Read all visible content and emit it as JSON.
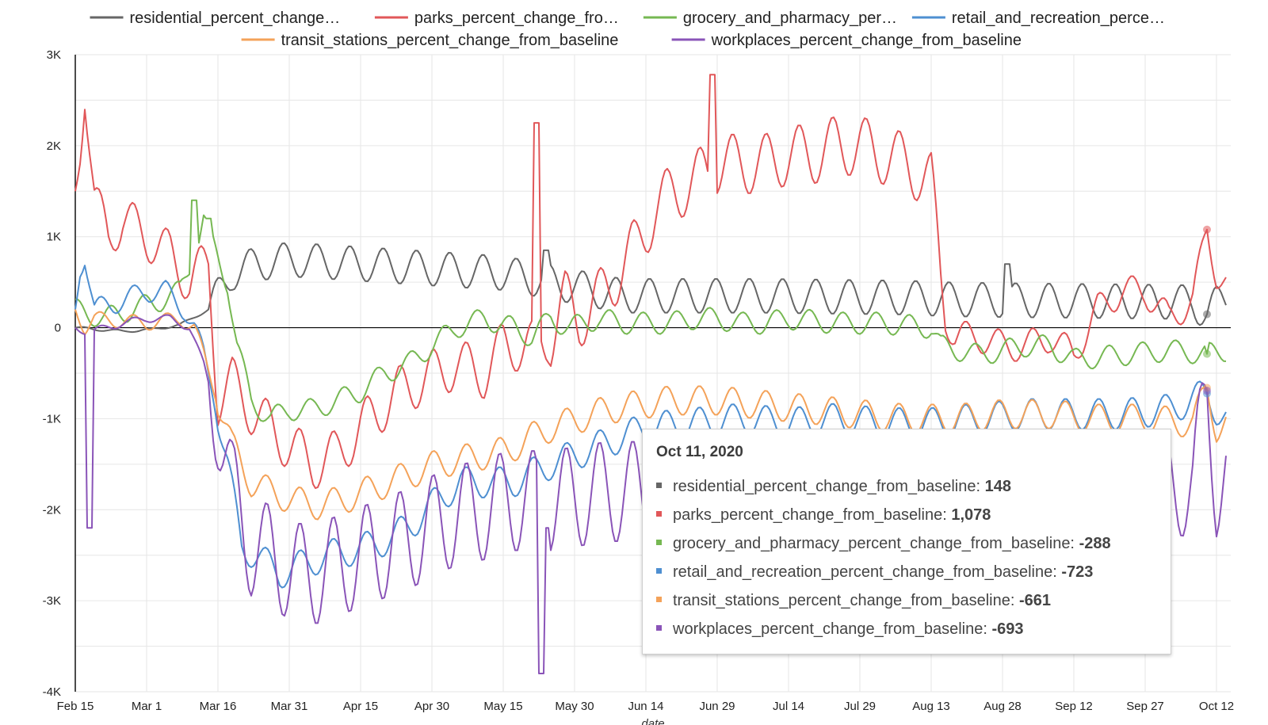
{
  "chart_data": {
    "type": "line",
    "xlabel": "date",
    "ylabel": "",
    "ylim": [
      -4000,
      3000
    ],
    "y_ticks": [
      3000,
      2000,
      1000,
      0,
      -1000,
      -2000,
      -3000,
      -4000
    ],
    "y_tick_labels": [
      "3K",
      "2K",
      "1K",
      "0",
      "-1K",
      "-2K",
      "-3K",
      "-4K"
    ],
    "x_tick_labels": [
      "Feb 15",
      "Mar 1",
      "Mar 16",
      "Mar 31",
      "Apr 15",
      "Apr 30",
      "May 15",
      "May 30",
      "Jun 14",
      "Jun 29",
      "Jul 14",
      "Jul 29",
      "Aug 13",
      "Aug 28",
      "Sep 12",
      "Sep 27",
      "Oct 12"
    ],
    "x_tick_days": [
      0,
      15,
      30,
      45,
      60,
      75,
      90,
      105,
      120,
      135,
      150,
      165,
      180,
      195,
      210,
      225,
      240
    ],
    "x_start": "2020-02-15",
    "x_end": "2020-10-16",
    "grid": true,
    "legend_position": "top",
    "series": [
      {
        "name": "residential_percent_change_from_baseline",
        "legend_label": "residential_percent_change…",
        "color": "#666666",
        "key": "residential",
        "anchors": [
          [
            0,
            0
          ],
          [
            10,
            -40
          ],
          [
            16,
            -20
          ],
          [
            22,
            30
          ],
          [
            28,
            200
          ],
          [
            33,
            600
          ],
          [
            38,
            700
          ],
          [
            45,
            750
          ],
          [
            60,
            700
          ],
          [
            75,
            650
          ],
          [
            90,
            600
          ],
          [
            100,
            500
          ],
          [
            115,
            350
          ],
          [
            130,
            350
          ],
          [
            145,
            350
          ],
          [
            160,
            340
          ],
          [
            175,
            330
          ],
          [
            185,
            310
          ],
          [
            200,
            300
          ],
          [
            220,
            290
          ],
          [
            235,
            280
          ],
          [
            238,
            148
          ],
          [
            240,
            270
          ],
          [
            242,
            330
          ]
        ]
      },
      {
        "name": "parks_percent_change_from_baseline",
        "legend_label": "parks_percent_change_fro…",
        "color": "#e15759",
        "key": "parks",
        "anchors": [
          [
            0,
            1500
          ],
          [
            1,
            2000
          ],
          [
            2,
            2650
          ],
          [
            4,
            1400
          ],
          [
            7,
            1000
          ],
          [
            10,
            1200
          ],
          [
            15,
            1000
          ],
          [
            20,
            800
          ],
          [
            24,
            500
          ],
          [
            28,
            700
          ],
          [
            30,
            -800
          ],
          [
            33,
            -600
          ],
          [
            37,
            -900
          ],
          [
            41,
            -1100
          ],
          [
            45,
            -1300
          ],
          [
            50,
            -1500
          ],
          [
            55,
            -1400
          ],
          [
            60,
            -1100
          ],
          [
            64,
            -900
          ],
          [
            68,
            -700
          ],
          [
            72,
            -600
          ],
          [
            76,
            -500
          ],
          [
            80,
            -400
          ],
          [
            86,
            -500
          ],
          [
            90,
            -200
          ],
          [
            96,
            -200
          ],
          [
            100,
            -100
          ],
          [
            103,
            300
          ],
          [
            106,
            100
          ],
          [
            110,
            300
          ],
          [
            114,
            600
          ],
          [
            118,
            900
          ],
          [
            122,
            1300
          ],
          [
            126,
            1500
          ],
          [
            130,
            1600
          ],
          [
            135,
            1800
          ],
          [
            140,
            1800
          ],
          [
            145,
            1800
          ],
          [
            150,
            1900
          ],
          [
            155,
            1900
          ],
          [
            160,
            2000
          ],
          [
            165,
            2000
          ],
          [
            170,
            1900
          ],
          [
            175,
            1800
          ],
          [
            180,
            1600
          ],
          [
            183,
            100
          ],
          [
            185,
            -100
          ],
          [
            190,
            -100
          ],
          [
            195,
            -200
          ],
          [
            200,
            -200
          ],
          [
            205,
            -100
          ],
          [
            210,
            -300
          ],
          [
            215,
            200
          ],
          [
            220,
            400
          ],
          [
            225,
            400
          ],
          [
            230,
            100
          ],
          [
            235,
            300
          ],
          [
            238,
            1078
          ],
          [
            240,
            600
          ],
          [
            242,
            480
          ]
        ]
      },
      {
        "name": "grocery_and_pharmacy_percent_change_from_baseline",
        "legend_label": "grocery_and_pharmacy_per…",
        "color": "#76b852",
        "key": "grocery",
        "anchors": [
          [
            0,
            200
          ],
          [
            6,
            100
          ],
          [
            12,
            200
          ],
          [
            18,
            300
          ],
          [
            22,
            400
          ],
          [
            25,
            800
          ],
          [
            27,
            1200
          ],
          [
            29,
            900
          ],
          [
            32,
            500
          ],
          [
            34,
            -200
          ],
          [
            37,
            -800
          ],
          [
            41,
            -1000
          ],
          [
            45,
            -900
          ],
          [
            50,
            -900
          ],
          [
            55,
            -800
          ],
          [
            60,
            -700
          ],
          [
            65,
            -500
          ],
          [
            70,
            -400
          ],
          [
            75,
            -200
          ],
          [
            80,
            0
          ],
          [
            86,
            100
          ],
          [
            92,
            0
          ],
          [
            96,
            -100
          ],
          [
            100,
            100
          ],
          [
            104,
            0
          ],
          [
            110,
            100
          ],
          [
            115,
            50
          ],
          [
            120,
            50
          ],
          [
            125,
            50
          ],
          [
            130,
            100
          ],
          [
            135,
            100
          ],
          [
            140,
            50
          ],
          [
            145,
            50
          ],
          [
            150,
            100
          ],
          [
            160,
            50
          ],
          [
            170,
            50
          ],
          [
            180,
            0
          ],
          [
            182,
            -200
          ],
          [
            190,
            -300
          ],
          [
            200,
            -200
          ],
          [
            205,
            -200
          ],
          [
            210,
            -350
          ],
          [
            220,
            -300
          ],
          [
            230,
            -250
          ],
          [
            238,
            -288
          ],
          [
            242,
            -250
          ]
        ]
      },
      {
        "name": "retail_and_recreation_percent_change_from_baseline",
        "legend_label": "retail_and_recreation_perce…",
        "color": "#4e8fd1",
        "key": "retail",
        "anchors": [
          [
            0,
            200
          ],
          [
            1,
            650
          ],
          [
            2,
            800
          ],
          [
            4,
            200
          ],
          [
            10,
            300
          ],
          [
            15,
            400
          ],
          [
            19,
            400
          ],
          [
            23,
            200
          ],
          [
            25,
            0
          ],
          [
            27,
            -300
          ],
          [
            29,
            -700
          ],
          [
            32,
            -1500
          ],
          [
            35,
            -2400
          ],
          [
            38,
            -2500
          ],
          [
            43,
            -2700
          ],
          [
            48,
            -2600
          ],
          [
            53,
            -2500
          ],
          [
            58,
            -2450
          ],
          [
            62,
            -2400
          ],
          [
            67,
            -2300
          ],
          [
            72,
            -2100
          ],
          [
            76,
            -1900
          ],
          [
            81,
            -1700
          ],
          [
            86,
            -1700
          ],
          [
            92,
            -1700
          ],
          [
            96,
            -1600
          ],
          [
            100,
            -1500
          ],
          [
            105,
            -1400
          ],
          [
            110,
            -1300
          ],
          [
            115,
            -1200
          ],
          [
            120,
            -1100
          ],
          [
            130,
            -1050
          ],
          [
            140,
            -1000
          ],
          [
            150,
            -1050
          ],
          [
            160,
            -1000
          ],
          [
            170,
            -1050
          ],
          [
            180,
            -1050
          ],
          [
            190,
            -1000
          ],
          [
            200,
            -950
          ],
          [
            210,
            -950
          ],
          [
            220,
            -950
          ],
          [
            230,
            -900
          ],
          [
            238,
            -723
          ],
          [
            240,
            -900
          ],
          [
            242,
            -1000
          ]
        ]
      },
      {
        "name": "transit_stations_percent_change_from_baseline",
        "legend_label": "transit_stations_percent_change_from_baseline",
        "color": "#f4a259",
        "key": "transit",
        "anchors": [
          [
            0,
            200
          ],
          [
            2,
            0
          ],
          [
            4,
            100
          ],
          [
            15,
            50
          ],
          [
            22,
            100
          ],
          [
            25,
            0
          ],
          [
            27,
            -300
          ],
          [
            30,
            -800
          ],
          [
            33,
            -1300
          ],
          [
            37,
            -1700
          ],
          [
            41,
            -1800
          ],
          [
            46,
            -1900
          ],
          [
            51,
            -1950
          ],
          [
            56,
            -1900
          ],
          [
            61,
            -1800
          ],
          [
            66,
            -1700
          ],
          [
            71,
            -1600
          ],
          [
            76,
            -1500
          ],
          [
            81,
            -1450
          ],
          [
            86,
            -1400
          ],
          [
            91,
            -1350
          ],
          [
            96,
            -1200
          ],
          [
            100,
            -1100
          ],
          [
            106,
            -1000
          ],
          [
            112,
            -900
          ],
          [
            118,
            -850
          ],
          [
            125,
            -800
          ],
          [
            135,
            -800
          ],
          [
            145,
            -850
          ],
          [
            155,
            -900
          ],
          [
            165,
            -950
          ],
          [
            175,
            -1000
          ],
          [
            185,
            -1000
          ],
          [
            195,
            -950
          ],
          [
            205,
            -950
          ],
          [
            215,
            -1000
          ],
          [
            225,
            -1000
          ],
          [
            235,
            -1050
          ],
          [
            238,
            -661
          ],
          [
            240,
            -1100
          ],
          [
            242,
            -1050
          ]
        ]
      },
      {
        "name": "workplaces_percent_change_from_baseline",
        "legend_label": "workplaces_percent_change_from_baseline",
        "color": "#8a54b8",
        "key": "workplaces",
        "anchors": [
          [
            0,
            0
          ],
          [
            3,
            -50
          ],
          [
            10,
            50
          ],
          [
            15,
            100
          ],
          [
            20,
            100
          ],
          [
            24,
            0
          ],
          [
            27,
            -400
          ],
          [
            30,
            -1000
          ],
          [
            33,
            -1800
          ],
          [
            37,
            -2400
          ],
          [
            41,
            -2500
          ],
          [
            46,
            -2700
          ],
          [
            51,
            -2700
          ],
          [
            56,
            -2600
          ],
          [
            61,
            -2500
          ],
          [
            66,
            -2400
          ],
          [
            71,
            -2300
          ],
          [
            76,
            -2150
          ],
          [
            81,
            -2050
          ],
          [
            86,
            -2000
          ],
          [
            91,
            -1900
          ],
          [
            96,
            -1900
          ],
          [
            100,
            -1900
          ],
          [
            106,
            -1850
          ],
          [
            112,
            -1800
          ],
          [
            118,
            -1800
          ],
          [
            125,
            -1800
          ],
          [
            135,
            -1800
          ],
          [
            145,
            -1800
          ],
          [
            155,
            -1800
          ],
          [
            165,
            -1800
          ],
          [
            175,
            -1800
          ],
          [
            185,
            -1800
          ],
          [
            195,
            -1750
          ],
          [
            205,
            -1700
          ],
          [
            215,
            -1700
          ],
          [
            225,
            -1700
          ],
          [
            235,
            -1750
          ],
          [
            238,
            -693
          ],
          [
            240,
            -1750
          ],
          [
            242,
            -1650
          ]
        ]
      }
    ]
  },
  "tooltip": {
    "title": "Oct 11, 2020",
    "rows": [
      {
        "label": "residential_percent_change_from_baseline:",
        "value": "148",
        "color": "#666666"
      },
      {
        "label": "parks_percent_change_from_baseline:",
        "value": "1,078",
        "color": "#e15759"
      },
      {
        "label": "grocery_and_pharmacy_percent_change_from_baseline:",
        "value": "-288",
        "color": "#76b852"
      },
      {
        "label": "retail_and_recreation_percent_change_from_baseline:",
        "value": "-723",
        "color": "#4e8fd1"
      },
      {
        "label": "transit_stations_percent_change_from_baseline:",
        "value": "-661",
        "color": "#f4a259"
      },
      {
        "label": "workplaces_percent_change_from_baseline:",
        "value": "-693",
        "color": "#8a54b8"
      }
    ]
  }
}
